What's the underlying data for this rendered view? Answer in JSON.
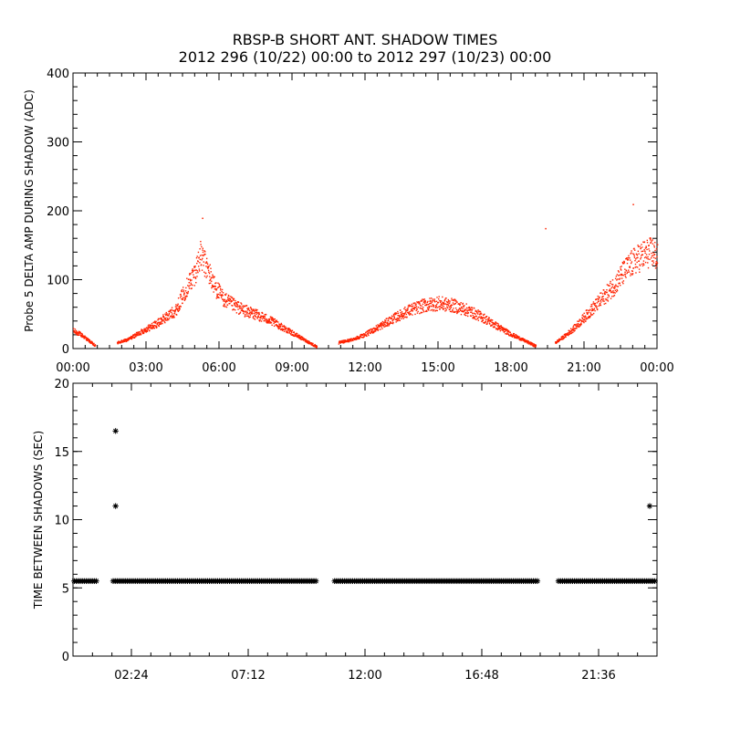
{
  "title": {
    "line1": "RBSP-B SHORT ANT. SHADOW TIMES",
    "line2": "2012 296 (10/22) 00:00 to 2012 297 (10/23) 00:00"
  },
  "chart_data": [
    {
      "type": "scatter",
      "id": "top",
      "ylabel": "Probe 5 DELTA AMP DURING SHADOW (ADC)",
      "xlabel": "",
      "x_unit": "hours",
      "xlim": [
        0,
        24
      ],
      "ylim": [
        0,
        400
      ],
      "xticks": [
        0,
        3,
        6,
        9,
        12,
        15,
        18,
        21,
        24
      ],
      "xtick_labels": [
        "00:00",
        "03:00",
        "06:00",
        "09:00",
        "12:00",
        "15:00",
        "18:00",
        "21:00",
        "00:00"
      ],
      "yticks": [
        0,
        100,
        200,
        300,
        400
      ],
      "ytick_labels": [
        "0",
        "100",
        "200",
        "300",
        "400"
      ],
      "color": "#ff2200",
      "series": [
        {
          "name": "segment-1",
          "x": [
            0.0,
            0.3,
            0.6,
            0.9
          ],
          "y": [
            25,
            20,
            12,
            3
          ]
        },
        {
          "name": "segment-2",
          "x": [
            1.8,
            2.2,
            2.6,
            3.0,
            3.4,
            3.8,
            4.2,
            4.6,
            5.0,
            5.2,
            5.5,
            5.8,
            6.2,
            6.6,
            7.0,
            7.4,
            7.8,
            8.2,
            8.6,
            9.0,
            9.4,
            9.8,
            10.0
          ],
          "y": [
            8,
            12,
            20,
            28,
            35,
            45,
            55,
            85,
            110,
            135,
            115,
            90,
            70,
            62,
            55,
            50,
            45,
            38,
            30,
            22,
            14,
            6,
            2
          ]
        },
        {
          "name": "segment-3",
          "x": [
            10.9,
            11.4,
            12.0,
            12.6,
            13.2,
            13.8,
            14.4,
            15.0,
            15.6,
            16.2,
            16.8,
            17.4,
            18.0,
            18.6,
            19.0
          ],
          "y": [
            8,
            12,
            20,
            32,
            44,
            55,
            62,
            65,
            62,
            55,
            45,
            32,
            20,
            10,
            3
          ]
        },
        {
          "name": "segment-4",
          "x": [
            19.8,
            20.2,
            20.6,
            21.0,
            21.4,
            21.8,
            22.2,
            22.6,
            23.0,
            23.4,
            23.8,
            24.0
          ],
          "y": [
            8,
            18,
            30,
            45,
            60,
            75,
            90,
            110,
            125,
            135,
            140,
            130
          ]
        }
      ],
      "outliers": {
        "x": [
          19.4,
          5.3,
          23.0
        ],
        "y": [
          175,
          190,
          210
        ]
      }
    },
    {
      "type": "scatter",
      "id": "bottom",
      "ylabel": "TIME BETWEEN SHADOWS (SEC)",
      "xlabel": "",
      "x_unit": "hours",
      "xlim": [
        0,
        24
      ],
      "ylim": [
        0,
        20
      ],
      "xticks": [
        2.4,
        7.2,
        12.0,
        16.8,
        21.6
      ],
      "xtick_labels": [
        "02:24",
        "07:12",
        "12:00",
        "16:48",
        "21:36"
      ],
      "yticks": [
        0,
        5,
        10,
        15,
        20
      ],
      "ytick_labels": [
        "0",
        "5",
        "10",
        "15",
        "20"
      ],
      "color": "#000000",
      "marker": "*",
      "baseline_value": 5.5,
      "baseline_ranges": [
        [
          0.05,
          1.0
        ],
        [
          1.65,
          10.05
        ],
        [
          10.75,
          19.15
        ],
        [
          19.95,
          23.95
        ]
      ],
      "points": {
        "x": [
          1.75,
          1.75,
          23.7
        ],
        "y": [
          16.5,
          11.0,
          11.0
        ]
      }
    }
  ]
}
